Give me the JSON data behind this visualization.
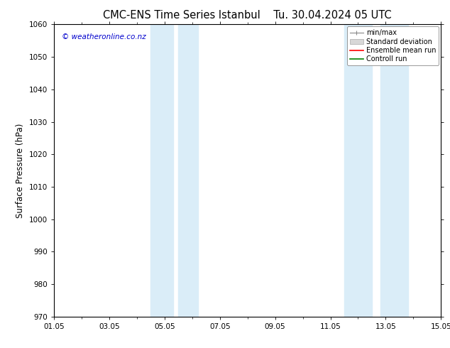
{
  "title": "CMC-ENS Time Series Istanbul",
  "title2": "Tu. 30.04.2024 05 UTC",
  "ylabel": "Surface Pressure (hPa)",
  "ylim": [
    970,
    1060
  ],
  "yticks": [
    970,
    980,
    990,
    1000,
    1010,
    1020,
    1030,
    1040,
    1050,
    1060
  ],
  "xlim": [
    0,
    14
  ],
  "xtick_labels": [
    "01.05",
    "03.05",
    "05.05",
    "07.05",
    "09.05",
    "11.05",
    "13.05",
    "15.05"
  ],
  "xtick_positions": [
    0,
    2,
    4,
    6,
    8,
    10,
    12,
    14
  ],
  "shaded_bands": [
    {
      "x_start": 3.5,
      "x_end": 4.3,
      "color": "#daedf8"
    },
    {
      "x_start": 4.5,
      "x_end": 5.2,
      "color": "#daedf8"
    },
    {
      "x_start": 10.5,
      "x_end": 11.5,
      "color": "#daedf8"
    },
    {
      "x_start": 11.8,
      "x_end": 12.8,
      "color": "#daedf8"
    }
  ],
  "watermark": "© weatheronline.co.nz",
  "watermark_color": "#0000cc",
  "legend_labels": [
    "min/max",
    "Standard deviation",
    "Ensemble mean run",
    "Controll run"
  ],
  "background_color": "#ffffff",
  "plot_bg_color": "#ffffff",
  "title_fontsize": 10.5,
  "tick_fontsize": 7.5,
  "ylabel_fontsize": 8.5
}
